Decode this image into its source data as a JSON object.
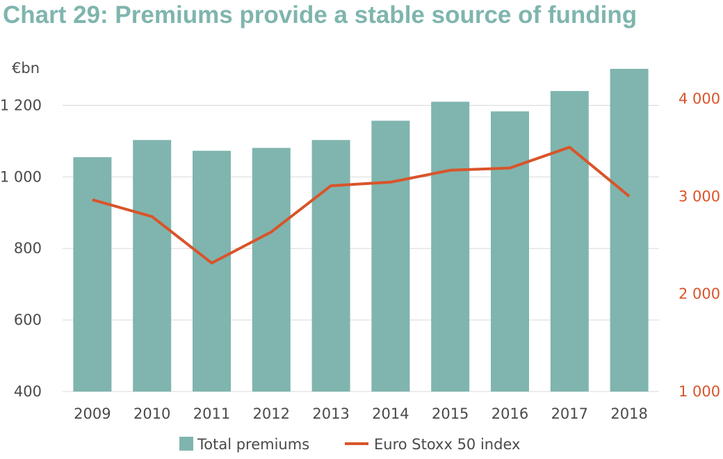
{
  "title": "Chart 29: Premiums provide a stable source of funding",
  "chart_data": {
    "type": "bar+line",
    "categories": [
      "2009",
      "2010",
      "2011",
      "2012",
      "2013",
      "2014",
      "2015",
      "2016",
      "2017",
      "2018"
    ],
    "series": [
      {
        "name": "Total premiums",
        "type": "bar",
        "axis": "left",
        "values": [
          1055,
          1103,
          1073,
          1081,
          1103,
          1157,
          1210,
          1183,
          1240,
          1302
        ]
      },
      {
        "name": "Euro Stoxx 50 index",
        "type": "line",
        "axis": "right",
        "values": [
          2966,
          2793,
          2317,
          2636,
          3109,
          3146,
          3268,
          3291,
          3504,
          3001
        ]
      }
    ],
    "y_left": {
      "unit": "€bn",
      "min": 400,
      "max": 1300,
      "ticks": [
        400,
        600,
        800,
        1000,
        1200
      ],
      "tick_labels": [
        "400",
        "600",
        "800",
        "1 000",
        "1 200"
      ]
    },
    "y_right": {
      "min": 1000,
      "max": 4300,
      "ticks": [
        1000,
        2000,
        3000,
        4000
      ],
      "tick_labels": [
        "1 000",
        "2 000",
        "3 000",
        "4 000"
      ]
    },
    "grid": true,
    "legend": "bottom",
    "colors": {
      "bar": "#7fb5ae",
      "line": "#d9542a",
      "title": "#7fb5ae",
      "grid": "#d9d9d9"
    }
  }
}
